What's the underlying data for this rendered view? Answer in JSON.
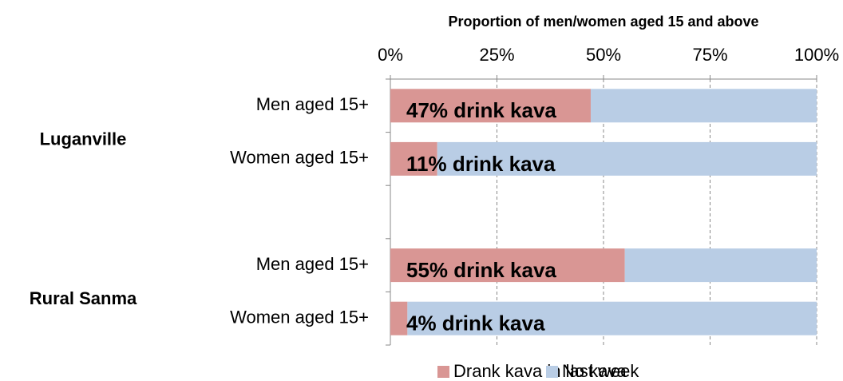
{
  "chart_data": {
    "type": "stacked-bar-horizontal",
    "xlabel": "Proportion of men/women aged 15 and above",
    "groups": [
      {
        "name": "Luganville",
        "categories": [
          "Men aged 15+",
          "Women aged 15+"
        ]
      },
      {
        "name": "Rural Sanma",
        "categories": [
          "Men aged 15+",
          "Women aged 15+"
        ]
      }
    ],
    "series": [
      {
        "name": "Drank kava in last week",
        "color": "#d99694",
        "values": [
          47,
          11,
          55,
          4
        ],
        "value_labels": [
          "47% drink kava",
          "11% drink kava",
          "55% drink kava",
          "4% drink kava"
        ]
      },
      {
        "name": "No kava",
        "color": "#b9cde5",
        "values": [
          53,
          89,
          45,
          96
        ]
      }
    ],
    "xlim": [
      0,
      100
    ],
    "xticks": [
      {
        "value": 0,
        "label": "0%"
      },
      {
        "value": 25,
        "label": "25%"
      },
      {
        "value": 50,
        "label": "50%"
      },
      {
        "value": 75,
        "label": "75%"
      },
      {
        "value": 100,
        "label": "100%"
      }
    ],
    "grid": true,
    "legend": "bottom"
  }
}
